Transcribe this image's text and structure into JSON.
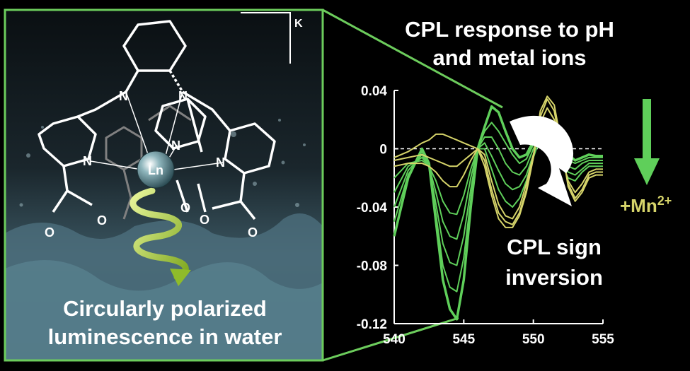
{
  "left_panel": {
    "caption_line1": "Circularly polarized",
    "caption_line2": "luminescence in water",
    "metal_label": "Ln",
    "counterion_label": "K",
    "atom_N": "N",
    "atom_O": "O"
  },
  "chart_title_line1": "CPL response to pH",
  "chart_title_line2": "and metal ions",
  "arrow_label_line1": "CPL sign",
  "arrow_label_line2": "inversion",
  "mn_label": "+Mn",
  "mn_charge": "2+",
  "colors": {
    "green": "#5fcf5a",
    "yellow": "#d6d46a",
    "frame": "#6ccc5c"
  },
  "chart_data": {
    "type": "line",
    "title": "CPL response to pH and metal ions",
    "xlabel": "",
    "ylabel": "",
    "xlim": [
      540,
      555
    ],
    "ylim": [
      -0.12,
      0.04
    ],
    "x_ticks": [
      "540",
      "545",
      "550",
      "555"
    ],
    "y_ticks": [
      "0.04",
      "0",
      "-0.04",
      "-0.08",
      "-0.12"
    ],
    "zero_line": "dashed",
    "x": [
      540,
      541,
      542,
      542.5,
      543,
      543.5,
      544,
      544.5,
      545,
      545.5,
      546,
      546.5,
      547,
      547.5,
      548,
      548.5,
      549,
      549.5,
      550,
      550.5,
      551,
      551.5,
      552,
      552.5,
      553,
      553.5,
      554,
      554.5,
      555
    ],
    "series": [
      {
        "color": "#5fcf5a",
        "values": [
          -0.06,
          -0.02,
          0.0,
          -0.01,
          -0.05,
          -0.09,
          -0.11,
          -0.117,
          -0.09,
          -0.04,
          0.0,
          0.015,
          0.029,
          0.025,
          0.012,
          0.0,
          -0.006,
          -0.004,
          0.005,
          0.012,
          0.015,
          0.01,
          0.003,
          -0.004,
          -0.008,
          -0.006,
          -0.004,
          -0.005,
          -0.005
        ]
      },
      {
        "color": "#5fcf5a",
        "values": [
          -0.05,
          -0.018,
          -0.002,
          -0.012,
          -0.045,
          -0.08,
          -0.095,
          -0.098,
          -0.075,
          -0.035,
          0.0,
          0.012,
          0.018,
          0.012,
          0.004,
          -0.004,
          -0.01,
          -0.007,
          0.003,
          0.01,
          0.012,
          0.008,
          0.0,
          -0.008,
          -0.01,
          -0.008,
          -0.006,
          -0.006,
          -0.006
        ]
      },
      {
        "color": "#5fcf5a",
        "values": [
          -0.04,
          -0.015,
          -0.004,
          -0.012,
          -0.038,
          -0.065,
          -0.078,
          -0.08,
          -0.06,
          -0.028,
          0.0,
          0.008,
          0.008,
          0.0,
          -0.01,
          -0.016,
          -0.018,
          -0.012,
          0.0,
          0.008,
          0.01,
          0.005,
          -0.003,
          -0.012,
          -0.014,
          -0.01,
          -0.008,
          -0.008,
          -0.008
        ]
      },
      {
        "color": "#5fcf5a",
        "values": [
          -0.03,
          -0.012,
          -0.006,
          -0.012,
          -0.03,
          -0.05,
          -0.06,
          -0.062,
          -0.045,
          -0.02,
          0.0,
          0.004,
          -0.005,
          -0.015,
          -0.024,
          -0.028,
          -0.026,
          -0.018,
          -0.004,
          0.005,
          0.008,
          0.002,
          -0.008,
          -0.016,
          -0.018,
          -0.014,
          -0.01,
          -0.01,
          -0.01
        ]
      },
      {
        "color": "#5fcf5a",
        "values": [
          -0.02,
          -0.01,
          -0.008,
          -0.012,
          -0.022,
          -0.036,
          -0.044,
          -0.045,
          -0.032,
          -0.014,
          0.0,
          0.0,
          -0.014,
          -0.028,
          -0.036,
          -0.04,
          -0.034,
          -0.022,
          -0.006,
          0.008,
          0.014,
          0.008,
          -0.01,
          -0.02,
          -0.022,
          -0.016,
          -0.012,
          -0.012,
          -0.012
        ]
      },
      {
        "color": "#d6d46a",
        "values": [
          -0.012,
          -0.01,
          -0.01,
          -0.012,
          -0.016,
          -0.022,
          -0.026,
          -0.026,
          -0.018,
          -0.008,
          0.0,
          -0.004,
          -0.022,
          -0.038,
          -0.046,
          -0.048,
          -0.04,
          -0.024,
          -0.004,
          0.018,
          0.028,
          0.02,
          -0.004,
          -0.022,
          -0.03,
          -0.024,
          -0.016,
          -0.014,
          -0.014
        ]
      },
      {
        "color": "#d6d46a",
        "values": [
          -0.008,
          -0.006,
          -0.004,
          -0.006,
          -0.008,
          -0.01,
          -0.012,
          -0.012,
          -0.008,
          -0.004,
          0.0,
          -0.008,
          -0.028,
          -0.044,
          -0.05,
          -0.052,
          -0.044,
          -0.028,
          -0.006,
          0.022,
          0.034,
          0.026,
          0.0,
          -0.024,
          -0.034,
          -0.028,
          -0.018,
          -0.016,
          -0.016
        ]
      },
      {
        "color": "#d6d46a",
        "values": [
          -0.006,
          -0.002,
          0.004,
          0.006,
          0.01,
          0.01,
          0.008,
          0.006,
          0.004,
          0.002,
          0.0,
          -0.012,
          -0.032,
          -0.048,
          -0.054,
          -0.054,
          -0.046,
          -0.03,
          -0.006,
          0.026,
          0.036,
          0.03,
          0.004,
          -0.026,
          -0.036,
          -0.03,
          -0.02,
          -0.018,
          -0.018
        ]
      }
    ]
  }
}
